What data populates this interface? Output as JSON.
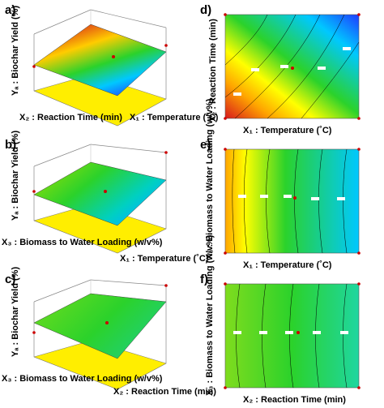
{
  "panel_labels": {
    "a": "a)",
    "b": "b)",
    "c": "c)",
    "d": "d)",
    "e": "e)",
    "f": "f)"
  },
  "colors": {
    "surface_high": "#d7191c",
    "surface_mid": "#2bd22b",
    "surface_low": "#1f3cff",
    "floor_yellow": "#ffee00",
    "marker": "#cc0000",
    "contour": "#000000"
  },
  "chart_data": [
    {
      "id": "a",
      "type": "surface3d",
      "zlabel": "Yₐ : Biochar Yield (%)",
      "xlabel": "X₁ : Temperature (˚C)",
      "ylabel": "X₂ : Reaction Time (min)",
      "gradient": [
        "#d7191c",
        "#ffcc00",
        "#2bd22b",
        "#00c8ff",
        "#1f3cff"
      ]
    },
    {
      "id": "b",
      "type": "surface3d",
      "zlabel": "Yₐ : Biochar Yield (%)",
      "xlabel": "X₁ : Temperature (˚C)",
      "ylabel": "X₃ : Biomass to Water Loading (w/v%)",
      "gradient": [
        "#a6e000",
        "#2bd22b",
        "#00d0c0",
        "#00b4ff"
      ]
    },
    {
      "id": "c",
      "type": "surface3d",
      "zlabel": "Yₐ : Biochar Yield (%)",
      "xlabel": "X₂ : Reaction Time (min)",
      "ylabel": "X₃ : Biomass to Water Loading (w/v%)",
      "gradient": [
        "#6fdc1e",
        "#2bd22b",
        "#20d070"
      ]
    },
    {
      "id": "d",
      "type": "contour",
      "xlabel": "X₁ : Temperature (˚C)",
      "ylabel": "X₂ : Reaction Time (min)",
      "gradient": [
        "#d7191c",
        "#ffa500",
        "#ffff00",
        "#2bd22b",
        "#00c8ff",
        "#1f3cff"
      ]
    },
    {
      "id": "e",
      "type": "contour",
      "xlabel": "X₁ : Temperature (˚C)",
      "ylabel": "X₃ : Biomass to Water Loading (w/v%)",
      "gradient": [
        "#ffa500",
        "#ffff00",
        "#2bd22b",
        "#00c8ff"
      ]
    },
    {
      "id": "f",
      "type": "contour",
      "xlabel": "X₂ : Reaction Time (min)",
      "ylabel": "X₃ : Biomass to Water Loading (w/v%)",
      "gradient": [
        "#7fdc1e",
        "#2bd22b",
        "#1fd6a0"
      ]
    }
  ]
}
